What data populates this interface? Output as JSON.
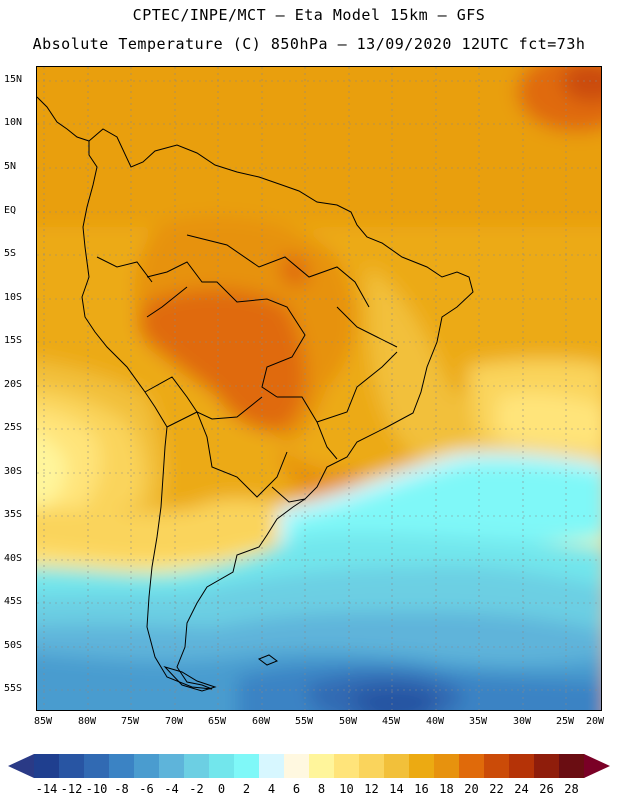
{
  "header": {
    "line1": "CPTEC/INPE/MCT –  Eta Model 15km – GFS",
    "line2": "Absolute Temperature (C) 850hPa – 13/09/2020 12UTC fct=73h"
  },
  "map": {
    "variable": "Absolute Temperature (C) 850hPa",
    "lat_labels": [
      "15N",
      "10N",
      "5N",
      "EQ",
      "5S",
      "10S",
      "15S",
      "20S",
      "25S",
      "30S",
      "35S",
      "40S",
      "45S",
      "50S",
      "55S"
    ],
    "lon_labels": [
      "85W",
      "80W",
      "75W",
      "70W",
      "65W",
      "60W",
      "55W",
      "50W",
      "45W",
      "40W",
      "35W",
      "30W",
      "25W",
      "20W"
    ],
    "lat_range": [
      -57.5,
      16
    ],
    "lon_range": [
      -85.5,
      -19.5
    ]
  },
  "legend": {
    "labels": [
      "-14",
      "-12",
      "-10",
      "-8",
      "-6",
      "-4",
      "-2",
      "0",
      "2",
      "4",
      "6",
      "8",
      "10",
      "12",
      "14",
      "16",
      "18",
      "20",
      "22",
      "24",
      "26",
      "28"
    ],
    "colors": [
      "#1f3f8f",
      "#2855a3",
      "#316ab3",
      "#3b83c4",
      "#4a9ccf",
      "#5eb4da",
      "#6ccfe3",
      "#72e6ec",
      "#7ff8f8",
      "#d7f7ff",
      "#fff8e0",
      "#fff59b",
      "#ffe47a",
      "#fad45c",
      "#f2c03a",
      "#ecaa12",
      "#e7920e",
      "#e06a0a",
      "#cb4b08",
      "#b53307",
      "#8f1d0b",
      "#6a0d12"
    ],
    "under_color": "#2a3a86",
    "over_color": "#7a0026"
  }
}
